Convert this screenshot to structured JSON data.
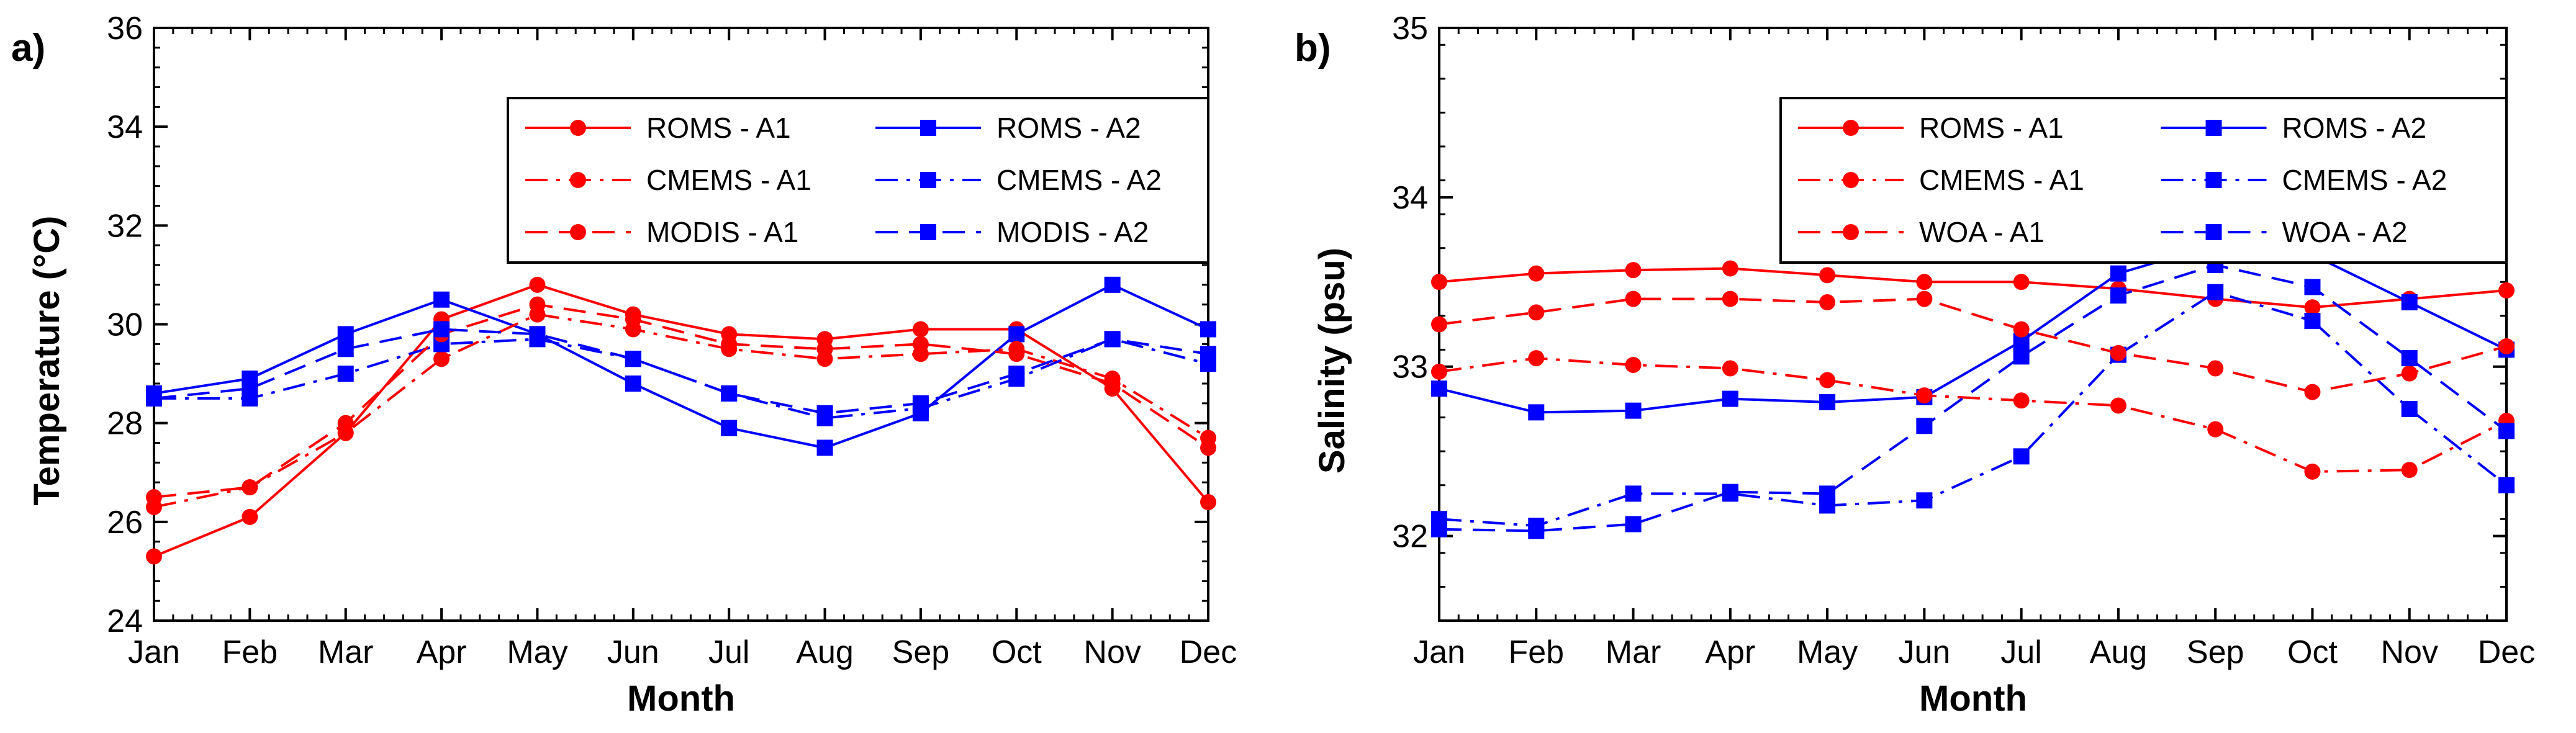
{
  "figure": {
    "panels": [
      "a)",
      "b)"
    ]
  },
  "chart_data": [
    {
      "type": "line",
      "panel_label": "a)",
      "title": "",
      "xlabel": "Month",
      "ylabel": "Temperature (°C)",
      "categories": [
        "Jan",
        "Feb",
        "Mar",
        "Apr",
        "May",
        "Jun",
        "Jul",
        "Aug",
        "Sep",
        "Oct",
        "Nov",
        "Dec"
      ],
      "ylim": [
        24,
        36
      ],
      "yticks": [
        24,
        26,
        28,
        30,
        32,
        34,
        36
      ],
      "grid": false,
      "legend_position": "top-right",
      "series": [
        {
          "name": "ROMS - A1",
          "color": "#ff0000",
          "marker": "circle",
          "dash": "solid",
          "values": [
            25.3,
            26.1,
            27.8,
            30.1,
            30.8,
            30.2,
            29.8,
            29.7,
            29.9,
            29.9,
            28.7,
            26.4
          ]
        },
        {
          "name": "ROMS - A2",
          "color": "#0000ff",
          "marker": "square",
          "dash": "solid",
          "values": [
            28.6,
            28.9,
            29.8,
            30.5,
            29.8,
            28.8,
            27.9,
            27.5,
            28.2,
            29.8,
            30.8,
            29.9
          ]
        },
        {
          "name": "CMEMS - A1",
          "color": "#ff0000",
          "marker": "circle",
          "dash": "dashdot",
          "values": [
            26.3,
            26.7,
            27.8,
            29.3,
            30.2,
            29.9,
            29.5,
            29.3,
            29.4,
            29.5,
            28.9,
            27.7
          ]
        },
        {
          "name": "CMEMS - A2",
          "color": "#0000ff",
          "marker": "square",
          "dash": "dashdot",
          "values": [
            28.5,
            28.5,
            29.0,
            29.6,
            29.7,
            29.3,
            28.6,
            28.1,
            28.3,
            28.9,
            29.7,
            29.2
          ]
        },
        {
          "name": "MODIS - A1",
          "color": "#ff0000",
          "marker": "circle",
          "dash": "dashed",
          "values": [
            26.5,
            26.7,
            28.0,
            29.8,
            30.4,
            30.1,
            29.6,
            29.5,
            29.6,
            29.4,
            28.8,
            27.5
          ]
        },
        {
          "name": "MODIS - A2",
          "color": "#0000ff",
          "marker": "square",
          "dash": "dashed",
          "values": [
            28.5,
            28.7,
            29.5,
            29.9,
            29.8,
            29.3,
            28.6,
            28.2,
            28.4,
            29.0,
            29.7,
            29.4
          ]
        }
      ]
    },
    {
      "type": "line",
      "panel_label": "b)",
      "title": "",
      "xlabel": "Month",
      "ylabel": "Salinity (psu)",
      "categories": [
        "Jan",
        "Feb",
        "Mar",
        "Apr",
        "May",
        "Jun",
        "Jul",
        "Aug",
        "Sep",
        "Oct",
        "Nov",
        "Dec"
      ],
      "ylim": [
        31.5,
        35
      ],
      "yticks": [
        32,
        33,
        34,
        35
      ],
      "grid": false,
      "legend_position": "top-right",
      "series": [
        {
          "name": "ROMS - A1",
          "color": "#ff0000",
          "marker": "circle",
          "dash": "solid",
          "values": [
            33.5,
            33.55,
            33.57,
            33.58,
            33.54,
            33.5,
            33.5,
            33.46,
            33.4,
            33.35,
            33.4,
            33.45
          ]
        },
        {
          "name": "ROMS - A2",
          "color": "#0000ff",
          "marker": "square",
          "dash": "solid",
          "values": [
            32.87,
            32.73,
            32.74,
            32.81,
            32.79,
            32.82,
            33.15,
            33.55,
            33.72,
            33.66,
            33.38,
            33.1
          ]
        },
        {
          "name": "CMEMS - A1",
          "color": "#ff0000",
          "marker": "circle",
          "dash": "dashdot",
          "values": [
            32.97,
            33.05,
            33.01,
            32.99,
            32.92,
            32.83,
            32.8,
            32.77,
            32.63,
            32.38,
            32.39,
            32.68
          ]
        },
        {
          "name": "CMEMS - A2",
          "color": "#0000ff",
          "marker": "square",
          "dash": "dashdot",
          "values": [
            32.1,
            32.06,
            32.25,
            32.25,
            32.18,
            32.21,
            32.47,
            33.07,
            33.44,
            33.27,
            32.75,
            32.3
          ]
        },
        {
          "name": "WOA - A1",
          "color": "#ff0000",
          "marker": "circle",
          "dash": "dashed",
          "values": [
            33.25,
            33.32,
            33.4,
            33.4,
            33.38,
            33.4,
            33.22,
            33.08,
            32.99,
            32.85,
            32.96,
            33.12
          ]
        },
        {
          "name": "WOA - A2",
          "color": "#0000ff",
          "marker": "square",
          "dash": "dashed",
          "values": [
            32.04,
            32.03,
            32.07,
            32.26,
            32.25,
            32.65,
            33.06,
            33.42,
            33.6,
            33.47,
            33.05,
            32.62
          ]
        }
      ]
    }
  ]
}
